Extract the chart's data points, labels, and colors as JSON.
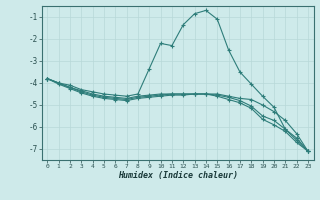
{
  "xlabel": "Humidex (Indice chaleur)",
  "background_color": "#ceeaea",
  "grid_color": "#b8d8d8",
  "line_color": "#2e7d7a",
  "x": [
    0,
    1,
    2,
    3,
    4,
    5,
    6,
    7,
    8,
    9,
    10,
    11,
    12,
    13,
    14,
    15,
    16,
    17,
    18,
    19,
    20,
    21,
    22,
    23
  ],
  "line1": [
    -3.8,
    -4.0,
    -4.1,
    -4.3,
    -4.4,
    -4.5,
    -4.55,
    -4.6,
    -4.5,
    -3.35,
    -2.2,
    -2.3,
    -1.35,
    -0.85,
    -0.7,
    -1.1,
    -2.5,
    -3.5,
    -4.05,
    -4.6,
    -5.1,
    -6.1,
    -6.5,
    -7.1
  ],
  "line2": [
    -3.8,
    -4.0,
    -4.2,
    -4.35,
    -4.5,
    -4.6,
    -4.65,
    -4.7,
    -4.6,
    -4.55,
    -4.5,
    -4.5,
    -4.5,
    -4.5,
    -4.5,
    -4.5,
    -4.6,
    -4.7,
    -4.75,
    -5.0,
    -5.3,
    -5.7,
    -6.3,
    -7.1
  ],
  "line3": [
    -3.8,
    -4.0,
    -4.2,
    -4.4,
    -4.55,
    -4.65,
    -4.7,
    -4.75,
    -4.65,
    -4.6,
    -4.55,
    -4.5,
    -4.5,
    -4.5,
    -4.5,
    -4.55,
    -4.65,
    -4.8,
    -5.05,
    -5.5,
    -5.7,
    -6.1,
    -6.6,
    -7.1
  ],
  "line4": [
    -3.8,
    -4.05,
    -4.25,
    -4.45,
    -4.6,
    -4.7,
    -4.75,
    -4.8,
    -4.7,
    -4.65,
    -4.6,
    -4.55,
    -4.55,
    -4.5,
    -4.5,
    -4.6,
    -4.75,
    -4.9,
    -5.15,
    -5.65,
    -5.9,
    -6.2,
    -6.7,
    -7.1
  ],
  "ylim": [
    -7.5,
    -0.5
  ],
  "xlim": [
    -0.5,
    23.5
  ],
  "yticks": [
    -7,
    -6,
    -5,
    -4,
    -3,
    -2,
    -1
  ],
  "xticks": [
    0,
    1,
    2,
    3,
    4,
    5,
    6,
    7,
    8,
    9,
    10,
    11,
    12,
    13,
    14,
    15,
    16,
    17,
    18,
    19,
    20,
    21,
    22,
    23
  ]
}
